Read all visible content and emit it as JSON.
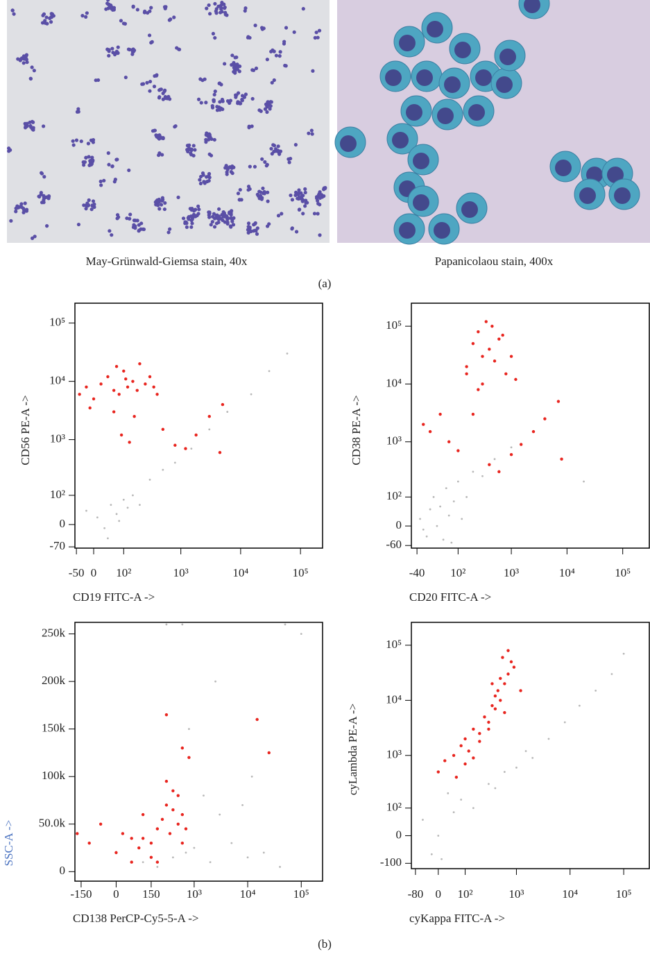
{
  "figure": {
    "panel_a": {
      "images": [
        {
          "caption": "May-Grünwald-Giemsa stain, 40x"
        },
        {
          "caption": "Papanicolaou stain, 400x"
        }
      ],
      "label": "(a)"
    },
    "panel_b": {
      "label": "(b)"
    }
  },
  "chart_data": [
    {
      "type": "scatter",
      "xlabel": "CD19 FITC-A ->",
      "ylabel": "CD56 PE-A ->",
      "xscale": "biexponential",
      "yscale": "biexponential",
      "xlim": [
        -55,
        234000
      ],
      "ylim": [
        -75,
        219000
      ],
      "xticks": [
        -50,
        0,
        {
          "value": 100,
          "label": "10²"
        },
        {
          "value": 1000,
          "label": "10³"
        },
        {
          "value": 10000,
          "label": "10⁴"
        },
        {
          "value": 100000,
          "label": "10⁵"
        }
      ],
      "yticks": [
        -70,
        0,
        {
          "value": 100,
          "label": "10²"
        },
        {
          "value": 1000,
          "label": "10³"
        },
        {
          "value": 10000,
          "label": "10⁴"
        },
        {
          "value": 100000,
          "label": "10⁵"
        }
      ],
      "series": [
        {
          "color": "#e8251f",
          "x": [
            -40,
            -20,
            0,
            20,
            40,
            60,
            80,
            100,
            120,
            150,
            180,
            200,
            250,
            300,
            350,
            400,
            60,
            90,
            130,
            160,
            500,
            800,
            1200,
            1800,
            3000,
            5000,
            4500,
            -10,
            70,
            110
          ],
          "values": [
            6000,
            8000,
            5000,
            9000,
            12000,
            7000,
            6000,
            15000,
            8000,
            10000,
            7000,
            20000,
            9000,
            12000,
            8000,
            6000,
            3000,
            1200,
            900,
            2500,
            1500,
            800,
            700,
            1200,
            2500,
            4000,
            600,
            3500,
            18000,
            11000
          ]
        },
        {
          "color": "#b8b8b8",
          "x": [
            -20,
            10,
            30,
            50,
            70,
            100,
            150,
            200,
            300,
            500,
            800,
            1500,
            3000,
            6000,
            15000,
            30000,
            60000,
            40,
            80,
            120
          ],
          "values": [
            40,
            20,
            -10,
            60,
            30,
            80,
            100,
            60,
            200,
            300,
            400,
            700,
            1500,
            3000,
            6000,
            15000,
            30000,
            -40,
            10,
            50
          ]
        }
      ]
    },
    {
      "type": "scatter",
      "xlabel": "CD20 FITC-A ->",
      "ylabel": "CD38 PE-A ->",
      "xscale": "biexponential",
      "yscale": "biexponential",
      "xlim": [
        -60,
        300000
      ],
      "ylim": [
        -70,
        250000
      ],
      "xticks": [
        -40,
        {
          "value": 100,
          "label": "10²"
        },
        {
          "value": 1000,
          "label": "10³"
        },
        {
          "value": 10000,
          "label": "10⁴"
        },
        {
          "value": 100000,
          "label": "10⁵"
        }
      ],
      "yticks": [
        -60,
        0,
        {
          "value": 100,
          "label": "10²"
        },
        {
          "value": 1000,
          "label": "10³"
        },
        {
          "value": 10000,
          "label": "10⁴"
        },
        {
          "value": 100000,
          "label": "10⁵"
        }
      ],
      "series": [
        {
          "color": "#e8251f",
          "x": [
            150,
            200,
            250,
            300,
            350,
            400,
            500,
            600,
            800,
            1000,
            250,
            300,
            450,
            700,
            200,
            1200,
            -20,
            0,
            30,
            60,
            100,
            400,
            600,
            1000,
            1500,
            2500,
            4000,
            7000,
            8000,
            150
          ],
          "values": [
            20000,
            50000,
            80000,
            30000,
            120000,
            40000,
            25000,
            60000,
            15000,
            30000,
            8000,
            10000,
            100000,
            70000,
            3000,
            12000,
            2000,
            1500,
            3000,
            1000,
            700,
            400,
            300,
            600,
            900,
            1500,
            2500,
            5000,
            500,
            15000
          ]
        },
        {
          "color": "#b8b8b8",
          "x": [
            -30,
            -10,
            0,
            10,
            20,
            30,
            40,
            50,
            60,
            80,
            100,
            120,
            150,
            200,
            300,
            500,
            1000,
            20000,
            -20,
            70
          ],
          "values": [
            20,
            -30,
            50,
            100,
            0,
            60,
            -40,
            150,
            30,
            80,
            200,
            20,
            100,
            300,
            250,
            500,
            800,
            200,
            -10,
            -50
          ]
        }
      ]
    },
    {
      "type": "scatter",
      "xlabel": "CD138 PerCP-Cy5-5-A ->",
      "ylabel": "SSC-A ->",
      "ylabel_color": "#4a72c0",
      "xscale": "biexponential",
      "yscale": "linear",
      "xlim": [
        -200,
        250000
      ],
      "ylim": [
        -10000,
        262144
      ],
      "xticks": [
        -150,
        0,
        150,
        {
          "value": 1000,
          "label": "10³"
        },
        {
          "value": 10000,
          "label": "10⁴"
        },
        {
          "value": 100000,
          "label": "10⁵"
        }
      ],
      "yticks": [
        0,
        {
          "value": 50000,
          "label": "50.0k"
        },
        {
          "value": 100000,
          "label": "100k"
        },
        {
          "value": 150000,
          "label": "150k"
        },
        {
          "value": 200000,
          "label": "200k"
        },
        {
          "value": 250000,
          "label": "250k"
        }
      ],
      "series": [
        {
          "color": "#e8251f",
          "x": [
            -180,
            -100,
            -50,
            0,
            20,
            50,
            80,
            100,
            150,
            200,
            250,
            300,
            350,
            400,
            500,
            600,
            700,
            800,
            150,
            200,
            300,
            400,
            500,
            600,
            15000,
            25000,
            300,
            600,
            50,
            100
          ],
          "values": [
            40000,
            30000,
            50000,
            20000,
            40000,
            35000,
            25000,
            60000,
            30000,
            45000,
            55000,
            70000,
            40000,
            85000,
            50000,
            60000,
            45000,
            120000,
            15000,
            10000,
            95000,
            65000,
            80000,
            30000,
            160000,
            125000,
            165000,
            130000,
            10000,
            35000
          ]
        },
        {
          "color": "#b8b8b8",
          "x": [
            100,
            200,
            400,
            700,
            1000,
            2000,
            5000,
            10000,
            20000,
            50000,
            300,
            600,
            1500,
            3000,
            8000,
            40000,
            100000,
            800,
            2500,
            12000
          ],
          "values": [
            10000,
            5000,
            15000,
            20000,
            25000,
            10000,
            30000,
            15000,
            20000,
            260000,
            260000,
            260000,
            80000,
            60000,
            70000,
            5000,
            250000,
            150000,
            200000,
            100000
          ]
        }
      ]
    },
    {
      "type": "scatter",
      "xlabel": "cyKappa FITC-A ->",
      "ylabel": "cyLambda PE-A ->",
      "xscale": "biexponential",
      "yscale": "biexponential",
      "xlim": [
        -100,
        300000
      ],
      "ylim": [
        -130,
        260000
      ],
      "xticks": [
        -80,
        0,
        {
          "value": 100,
          "label": "10²"
        },
        {
          "value": 1000,
          "label": "10³"
        },
        {
          "value": 10000,
          "label": "10⁴"
        },
        {
          "value": 100000,
          "label": "10⁵"
        }
      ],
      "yticks": [
        -100,
        0,
        {
          "value": 100,
          "label": "10²"
        },
        {
          "value": 1000,
          "label": "10³"
        },
        {
          "value": 10000,
          "label": "10⁴"
        },
        {
          "value": 100000,
          "label": "10⁵"
        }
      ],
      "series": [
        {
          "color": "#e8251f",
          "x": [
            0,
            20,
            50,
            80,
            100,
            120,
            150,
            200,
            250,
            300,
            350,
            400,
            450,
            500,
            600,
            700,
            800,
            900,
            400,
            500,
            600,
            300,
            200,
            1200,
            150,
            100,
            60,
            700,
            550,
            350
          ],
          "values": [
            500,
            800,
            1000,
            1500,
            2000,
            1200,
            3000,
            2500,
            5000,
            4000,
            8000,
            7000,
            15000,
            10000,
            20000,
            30000,
            50000,
            40000,
            12000,
            25000,
            6000,
            3000,
            1800,
            15000,
            900,
            700,
            400,
            80000,
            60000,
            20000
          ]
        },
        {
          "color": "#b8b8b8",
          "x": [
            -50,
            0,
            30,
            80,
            150,
            300,
            600,
            1000,
            2000,
            4000,
            8000,
            15000,
            30000,
            60000,
            100000,
            10,
            50,
            400,
            1500,
            -20
          ],
          "values": [
            50,
            0,
            200,
            150,
            100,
            300,
            500,
            600,
            900,
            2000,
            4000,
            8000,
            15000,
            30000,
            70000,
            -80,
            80,
            250,
            1200,
            -60
          ]
        }
      ]
    }
  ]
}
